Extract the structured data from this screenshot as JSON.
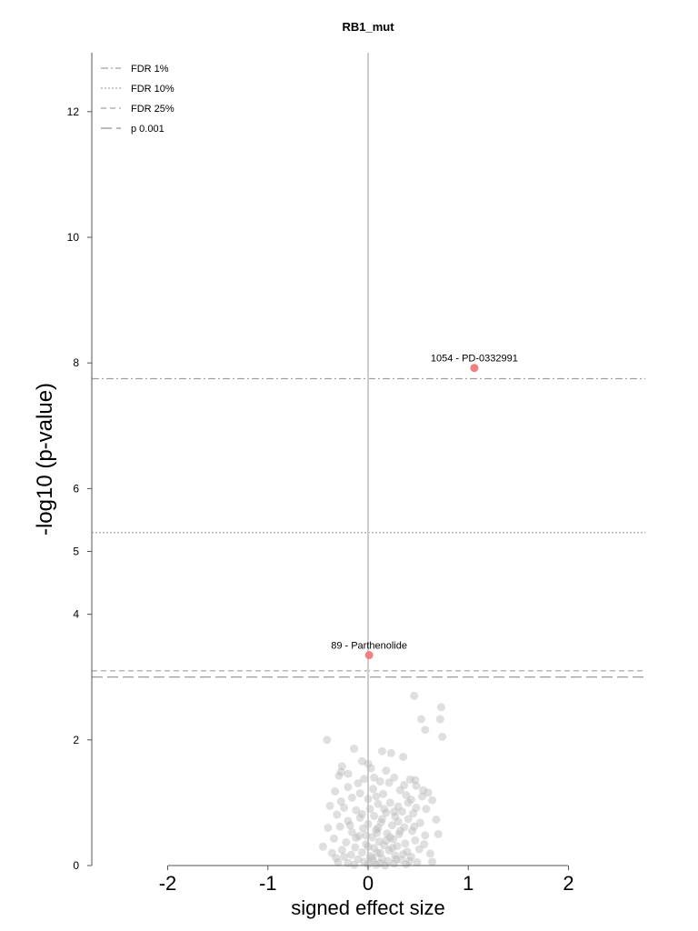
{
  "chart_data": {
    "type": "scatter",
    "title": "RB1_mut",
    "xlabel": "signed effect size",
    "ylabel": "-log10 (p-value)",
    "xlim": [
      -2.75,
      2.75
    ],
    "ylim": [
      0,
      12.9
    ],
    "xticks": [
      "-2",
      "-1",
      "0",
      "1",
      "2"
    ],
    "xtick_values": [
      -2,
      -1,
      0,
      1,
      2
    ],
    "yticks": [
      "0",
      "2",
      "4",
      "5",
      "6",
      "8",
      "10",
      "12"
    ],
    "ytick_values": [
      0,
      2,
      4,
      5,
      6,
      8,
      10,
      12
    ],
    "grid": false,
    "legend_position": "top-left",
    "thresholds": [
      {
        "name": "FDR 1%",
        "y": 7.75,
        "style": "dashdot",
        "color": "#a0a0a0"
      },
      {
        "name": "FDR 10%",
        "y": 5.3,
        "style": "dotted",
        "color": "#a8a8a8"
      },
      {
        "name": "FDR 25%",
        "y": 3.1,
        "style": "dashed",
        "color": "#a0a0a0"
      },
      {
        "name": "p 0.001",
        "y": 3.0,
        "style": "longdash",
        "color": "#909090"
      }
    ],
    "highlighted": [
      {
        "label": "1054 - PD-0332991",
        "x": 1.06,
        "y": 7.92,
        "color": "#f08080"
      },
      {
        "label": "89 - Parthenolide",
        "x": 0.01,
        "y": 3.35,
        "color": "#f08080"
      }
    ],
    "points_color": "#b8b8b8",
    "points": [
      [
        0.46,
        2.7
      ],
      [
        0.73,
        2.52
      ],
      [
        0.53,
        2.33
      ],
      [
        0.72,
        2.33
      ],
      [
        0.57,
        2.16
      ],
      [
        0.74,
        2.05
      ],
      [
        -0.41,
        2.0
      ],
      [
        -0.14,
        1.86
      ],
      [
        0.14,
        1.82
      ],
      [
        0.23,
        1.79
      ],
      [
        0.35,
        1.73
      ],
      [
        -0.06,
        1.66
      ],
      [
        0.0,
        1.62
      ],
      [
        -0.26,
        1.58
      ],
      [
        0.03,
        1.55
      ],
      [
        0.18,
        1.51
      ],
      [
        -0.27,
        1.49
      ],
      [
        -0.2,
        1.46
      ],
      [
        -0.29,
        1.43
      ],
      [
        0.26,
        1.4
      ],
      [
        -0.04,
        1.38
      ],
      [
        0.42,
        1.37
      ],
      [
        0.47,
        1.36
      ],
      [
        0.12,
        1.34
      ],
      [
        0.21,
        1.32
      ],
      [
        -0.1,
        1.31
      ],
      [
        0.36,
        1.28
      ],
      [
        0.48,
        1.27
      ],
      [
        -0.2,
        1.25
      ],
      [
        0.05,
        1.22
      ],
      [
        0.32,
        1.2
      ],
      [
        -0.33,
        1.18
      ],
      [
        0.6,
        1.16
      ],
      [
        0.15,
        1.14
      ],
      [
        0.38,
        1.12
      ],
      [
        0.54,
        1.1
      ],
      [
        -0.16,
        1.08
      ],
      [
        0.0,
        1.06
      ],
      [
        0.43,
        1.05
      ],
      [
        0.64,
        1.04
      ],
      [
        -0.27,
        1.02
      ],
      [
        0.22,
        1.0
      ],
      [
        0.1,
        0.98
      ],
      [
        -0.38,
        0.95
      ],
      [
        0.3,
        0.94
      ],
      [
        0.48,
        0.92
      ],
      [
        0.02,
        0.9
      ],
      [
        -0.12,
        0.88
      ],
      [
        0.34,
        0.86
      ],
      [
        0.18,
        0.84
      ],
      [
        0.45,
        0.83
      ],
      [
        -0.31,
        0.81
      ],
      [
        0.06,
        0.79
      ],
      [
        0.27,
        0.78
      ],
      [
        -0.08,
        0.76
      ],
      [
        0.4,
        0.74
      ],
      [
        0.68,
        0.73
      ],
      [
        -0.2,
        0.71
      ],
      [
        0.13,
        0.69
      ],
      [
        0.52,
        0.68
      ],
      [
        0.0,
        0.66
      ],
      [
        0.24,
        0.64
      ],
      [
        -0.28,
        0.62
      ],
      [
        0.36,
        0.61
      ],
      [
        -0.05,
        0.59
      ],
      [
        0.08,
        0.57
      ],
      [
        0.44,
        0.55
      ],
      [
        -0.16,
        0.53
      ],
      [
        0.19,
        0.51
      ],
      [
        0.31,
        0.5
      ],
      [
        0.57,
        0.48
      ],
      [
        -0.09,
        0.47
      ],
      [
        0.04,
        0.45
      ],
      [
        -0.34,
        0.43
      ],
      [
        0.25,
        0.42
      ],
      [
        0.47,
        0.4
      ],
      [
        0.11,
        0.38
      ],
      [
        -0.22,
        0.37
      ],
      [
        0.37,
        0.35
      ],
      [
        -0.02,
        0.34
      ],
      [
        0.16,
        0.32
      ],
      [
        0.29,
        0.31
      ],
      [
        -0.13,
        0.29
      ],
      [
        0.06,
        0.28
      ],
      [
        0.51,
        0.26
      ],
      [
        -0.26,
        0.25
      ],
      [
        0.21,
        0.24
      ],
      [
        0.39,
        0.22
      ],
      [
        -0.06,
        0.21
      ],
      [
        0.09,
        0.2
      ],
      [
        0.62,
        0.19
      ],
      [
        -0.17,
        0.17
      ],
      [
        0.27,
        0.16
      ],
      [
        0.02,
        0.15
      ],
      [
        0.43,
        0.14
      ],
      [
        -0.32,
        0.12
      ],
      [
        0.14,
        0.11
      ],
      [
        -0.1,
        0.1
      ],
      [
        0.33,
        0.09
      ],
      [
        0.05,
        0.08
      ],
      [
        0.2,
        0.07
      ],
      [
        -0.04,
        0.06
      ],
      [
        0.49,
        0.05
      ],
      [
        0.12,
        0.04
      ],
      [
        -0.2,
        0.04
      ],
      [
        0.26,
        0.03
      ],
      [
        0.0,
        0.02
      ],
      [
        0.38,
        0.02
      ],
      [
        0.08,
        0.01
      ],
      [
        -0.14,
        0.01
      ],
      [
        0.17,
        0.0
      ],
      [
        0.64,
        0.06
      ],
      [
        -0.36,
        0.2
      ],
      [
        -0.24,
        0.14
      ],
      [
        0.56,
        0.34
      ],
      [
        0.7,
        0.5
      ],
      [
        -0.4,
        0.6
      ],
      [
        0.58,
        0.9
      ],
      [
        -0.45,
        0.3
      ],
      [
        0.1,
        0.6
      ],
      [
        0.22,
        0.45
      ],
      [
        -0.02,
        0.48
      ],
      [
        0.3,
        0.7
      ],
      [
        0.16,
        0.9
      ],
      [
        -0.08,
        1.15
      ],
      [
        0.06,
        1.4
      ],
      [
        0.28,
        0.1
      ],
      [
        0.35,
        0.18
      ],
      [
        -0.3,
        0.05
      ],
      [
        0.41,
        0.07
      ],
      [
        0.0,
        0.3
      ],
      [
        0.12,
        0.2
      ],
      [
        0.04,
        0.12
      ],
      [
        0.24,
        0.28
      ],
      [
        0.18,
        0.4
      ],
      [
        -0.12,
        0.44
      ],
      [
        0.09,
        0.52
      ],
      [
        0.32,
        0.55
      ],
      [
        -0.18,
        0.64
      ],
      [
        0.46,
        0.62
      ],
      [
        0.14,
        0.74
      ],
      [
        -0.06,
        0.82
      ],
      [
        0.26,
        0.86
      ],
      [
        0.4,
        1.0
      ],
      [
        -0.24,
        0.92
      ],
      [
        0.55,
        1.2
      ],
      [
        0.08,
        1.1
      ]
    ]
  }
}
